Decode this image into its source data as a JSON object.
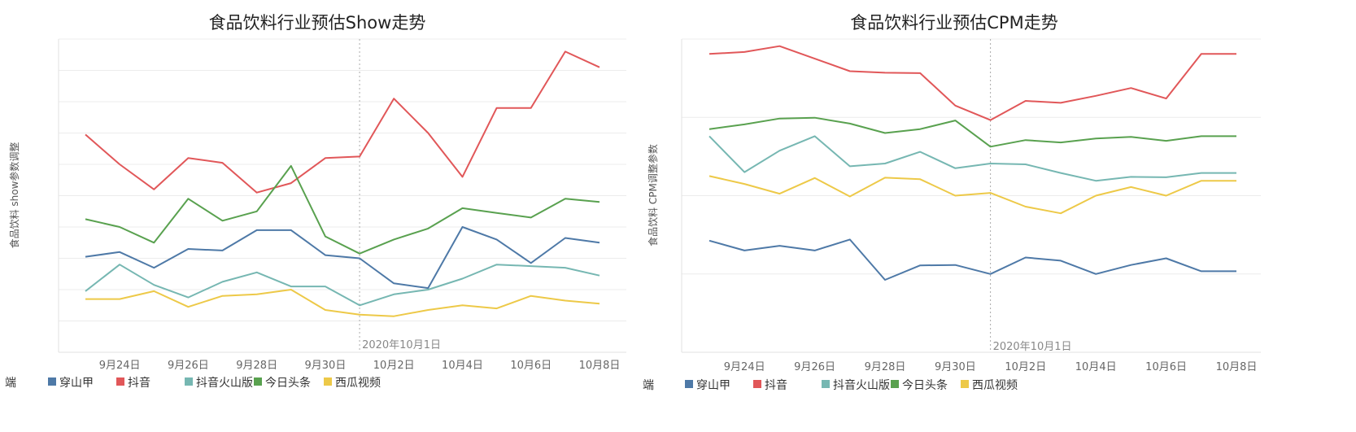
{
  "chart_data": [
    {
      "type": "line",
      "title": "食品饮料行业预估Show走势",
      "ylabel": "食品饮料 show参数调整",
      "x": [
        "9月23日",
        "9月24日",
        "9月25日",
        "9月26日",
        "9月27日",
        "9月28日",
        "9月29日",
        "9月30日",
        "10月1日",
        "10月2日",
        "10月3日",
        "10月4日",
        "10月5日",
        "10月6日",
        "10月7日",
        "10月8日"
      ],
      "x_tick_labels": [
        "9月24日",
        "9月26日",
        "9月28日",
        "9月30日",
        "10月2日",
        "10月4日",
        "10月6日",
        "10月8日"
      ],
      "ylim": [
        0,
        10
      ],
      "grid": true,
      "reference_line": {
        "x": "10月1日",
        "label": "2020年10月1日"
      },
      "series": [
        {
          "name": "穿山甲",
          "color": "#4e79a7",
          "values": [
            3.05,
            3.2,
            2.7,
            3.3,
            3.25,
            3.9,
            3.9,
            3.1,
            3.0,
            2.2,
            2.05,
            4.0,
            3.6,
            2.85,
            3.65,
            3.5
          ]
        },
        {
          "name": "抖音",
          "color": "#e15759",
          "values": [
            6.95,
            6.0,
            5.2,
            6.2,
            6.05,
            5.1,
            5.4,
            6.2,
            6.25,
            8.1,
            7.0,
            5.6,
            7.8,
            7.8,
            9.6,
            9.1
          ]
        },
        {
          "name": "抖音火山版",
          "color": "#76b7b2",
          "values": [
            1.95,
            2.8,
            2.15,
            1.75,
            2.25,
            2.55,
            2.1,
            2.1,
            1.5,
            1.85,
            2.0,
            2.35,
            2.8,
            2.75,
            2.7,
            2.45
          ]
        },
        {
          "name": "今日头条",
          "color": "#59a14f",
          "values": [
            4.25,
            4.0,
            3.5,
            4.9,
            4.2,
            4.5,
            5.95,
            3.7,
            3.15,
            3.6,
            3.95,
            4.6,
            4.45,
            4.3,
            4.9,
            4.8
          ]
        },
        {
          "name": "西瓜视频",
          "color": "#edc948",
          "values": [
            1.7,
            1.7,
            1.95,
            1.45,
            1.8,
            1.85,
            2.0,
            1.35,
            1.2,
            1.15,
            1.35,
            1.5,
            1.4,
            1.8,
            1.65,
            1.55
          ]
        }
      ]
    },
    {
      "type": "line",
      "title": "食品饮料行业预估CPM走势",
      "ylabel": "食品饮料 CPM调整参数",
      "x": [
        "9月23日",
        "9月24日",
        "9月25日",
        "9月26日",
        "9月27日",
        "9月28日",
        "9月29日",
        "9月30日",
        "10月1日",
        "10月2日",
        "10月3日",
        "10月4日",
        "10月5日",
        "10月6日",
        "10月7日",
        "10月8日"
      ],
      "x_tick_labels": [
        "9月24日",
        "9月26日",
        "9月28日",
        "9月30日",
        "10月2日",
        "10月4日",
        "10月6日",
        "10月8日"
      ],
      "ylim": [
        0,
        8
      ],
      "grid": true,
      "reference_line": {
        "x": "10月1日",
        "label": "2020年10月1日"
      },
      "series": [
        {
          "name": "穿山甲",
          "color": "#4e79a7",
          "values": [
            2.85,
            2.6,
            2.72,
            2.6,
            2.88,
            1.85,
            2.22,
            2.23,
            2.0,
            2.42,
            2.34,
            2.0,
            2.23,
            2.4,
            2.07,
            2.07
          ]
        },
        {
          "name": "抖音",
          "color": "#e15759",
          "values": [
            7.62,
            7.67,
            7.82,
            7.5,
            7.18,
            7.14,
            7.13,
            6.3,
            5.93,
            6.42,
            6.37,
            6.55,
            6.75,
            6.48,
            7.62,
            7.62
          ]
        },
        {
          "name": "抖音火山版",
          "color": "#76b7b2",
          "values": [
            5.52,
            4.6,
            5.15,
            5.52,
            4.75,
            4.82,
            5.12,
            4.7,
            4.82,
            4.8,
            4.58,
            4.38,
            4.48,
            4.47,
            4.58,
            4.58
          ]
        },
        {
          "name": "今日头条",
          "color": "#59a14f",
          "values": [
            5.7,
            5.82,
            5.97,
            5.99,
            5.84,
            5.6,
            5.7,
            5.92,
            5.25,
            5.42,
            5.36,
            5.46,
            5.5,
            5.4,
            5.52,
            5.52
          ]
        },
        {
          "name": "西瓜视频",
          "color": "#edc948",
          "values": [
            4.5,
            4.3,
            4.05,
            4.45,
            3.98,
            4.46,
            4.42,
            4.0,
            4.07,
            3.72,
            3.55,
            4.0,
            4.22,
            4.0,
            4.38,
            4.38
          ]
        }
      ]
    }
  ],
  "legend": {
    "label": "端",
    "items": [
      {
        "name": "穿山甲",
        "color": "#4e79a7"
      },
      {
        "name": "抖音",
        "color": "#e15759"
      },
      {
        "name": "抖音火山版",
        "color": "#76b7b2"
      },
      {
        "name": "今日头条",
        "color": "#59a14f"
      },
      {
        "name": "西瓜视频",
        "color": "#edc948"
      }
    ]
  }
}
